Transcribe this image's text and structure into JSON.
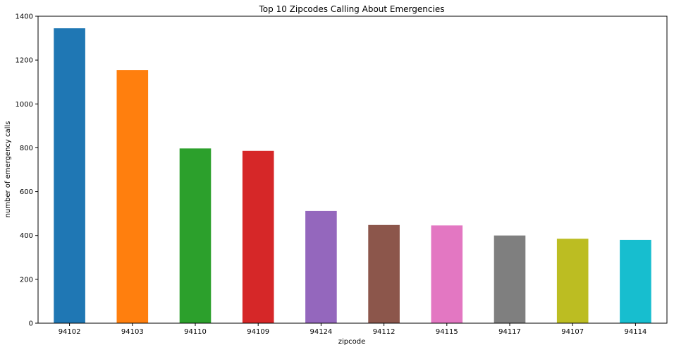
{
  "chart_data": {
    "type": "bar",
    "title": "Top 10 Zipcodes Calling About Emergencies",
    "xlabel": "zipcode",
    "ylabel": "number of emergency calls",
    "categories": [
      "94102",
      "94103",
      "94110",
      "94109",
      "94124",
      "94112",
      "94115",
      "94117",
      "94107",
      "94114"
    ],
    "values": [
      1345,
      1155,
      797,
      786,
      512,
      448,
      446,
      400,
      385,
      380
    ],
    "colors": [
      "#1f77b4",
      "#ff7f0e",
      "#2ca02c",
      "#d62728",
      "#9467bd",
      "#8c564b",
      "#e377c2",
      "#7f7f7f",
      "#bcbd22",
      "#17becf"
    ],
    "ylim": [
      0,
      1400
    ],
    "yticks": [
      0,
      200,
      400,
      600,
      800,
      1000,
      1200,
      1400
    ],
    "grid": false,
    "legend": "none"
  }
}
